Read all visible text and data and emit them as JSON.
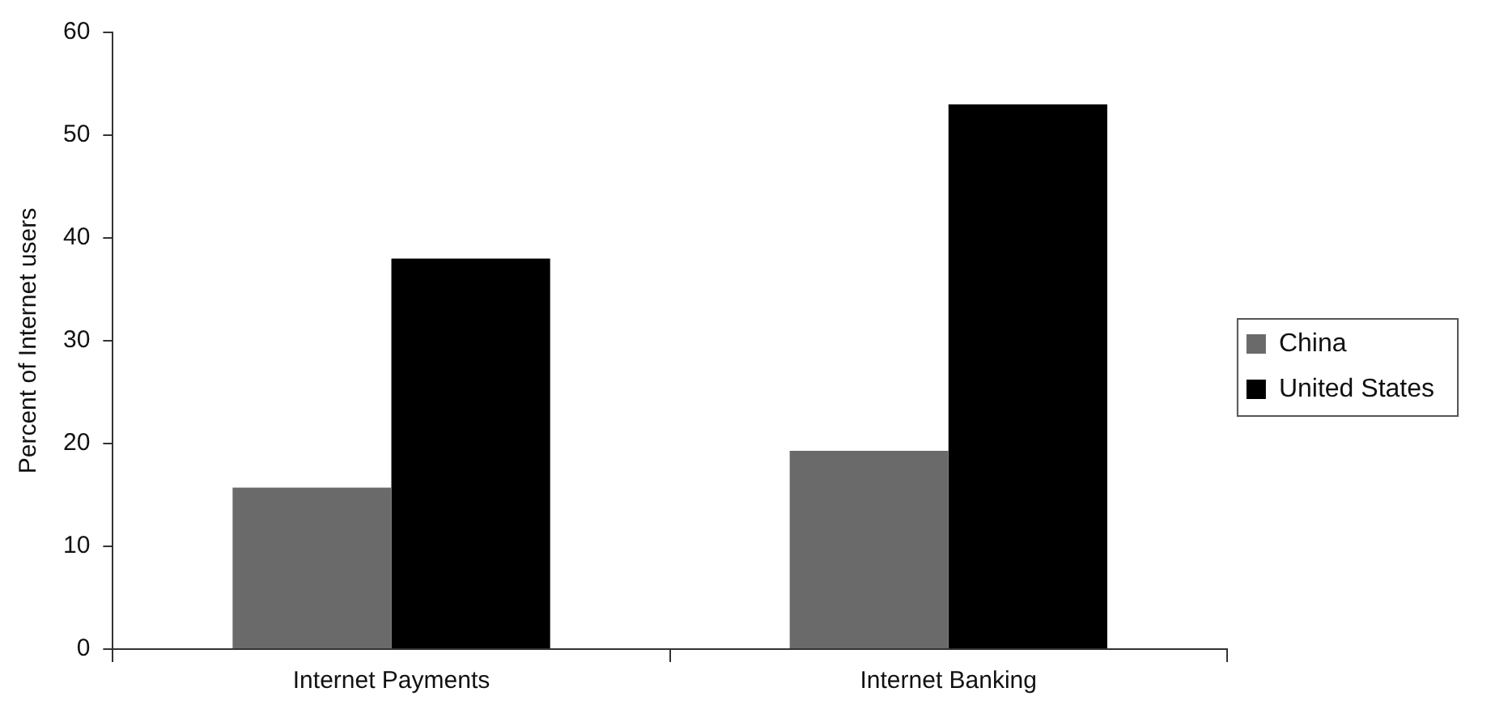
{
  "chart_data": {
    "type": "bar",
    "ylabel": "Percent of Internet users",
    "categories": [
      "Internet Payments",
      "Internet Banking"
    ],
    "series": [
      {
        "name": "China",
        "color": "#6a6a6a",
        "values": [
          15.7,
          19.3
        ]
      },
      {
        "name": "United States",
        "color": "#000000",
        "values": [
          38.0,
          53.0
        ]
      }
    ],
    "ylim": [
      0,
      60
    ],
    "yticks": [
      0,
      10,
      20,
      30,
      40,
      50,
      60
    ],
    "grid": false,
    "legend": "right"
  }
}
